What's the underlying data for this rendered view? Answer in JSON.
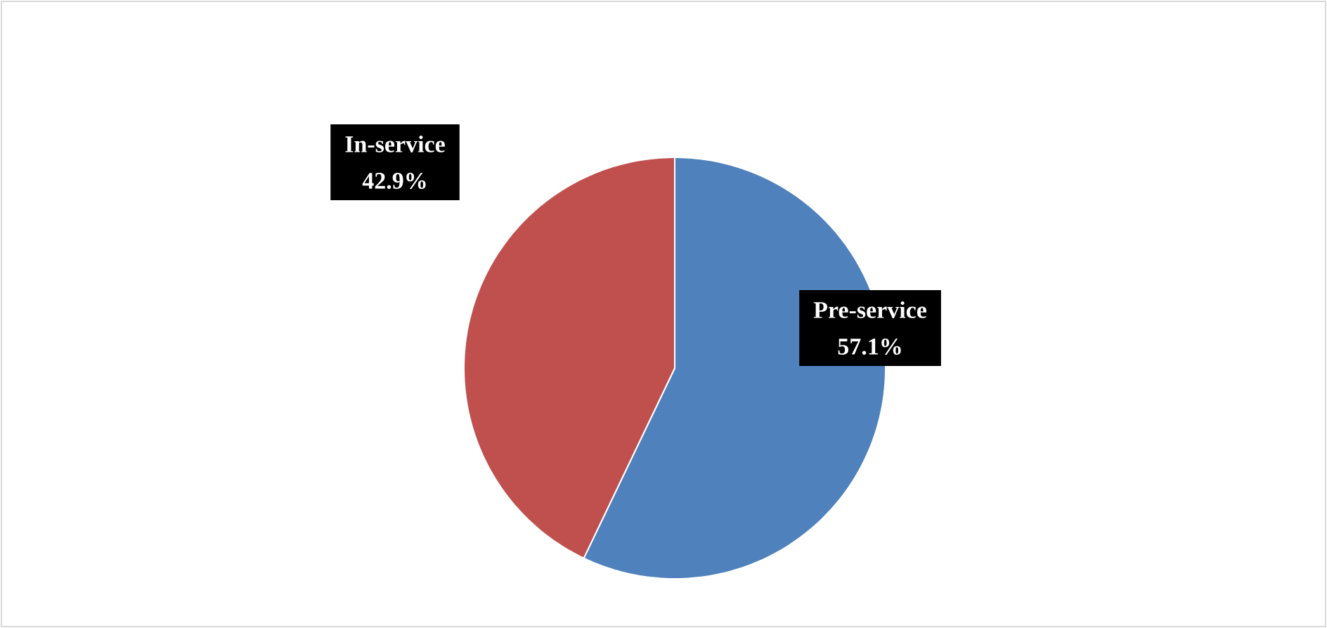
{
  "chart_data": {
    "type": "pie",
    "categories": [
      "Pre-service",
      "In-service"
    ],
    "values": [
      57.1,
      42.9
    ],
    "colors": [
      "#4f81bd",
      "#c0504d"
    ],
    "value_labels": [
      "57.1%",
      "42.9%"
    ],
    "legend": false
  }
}
